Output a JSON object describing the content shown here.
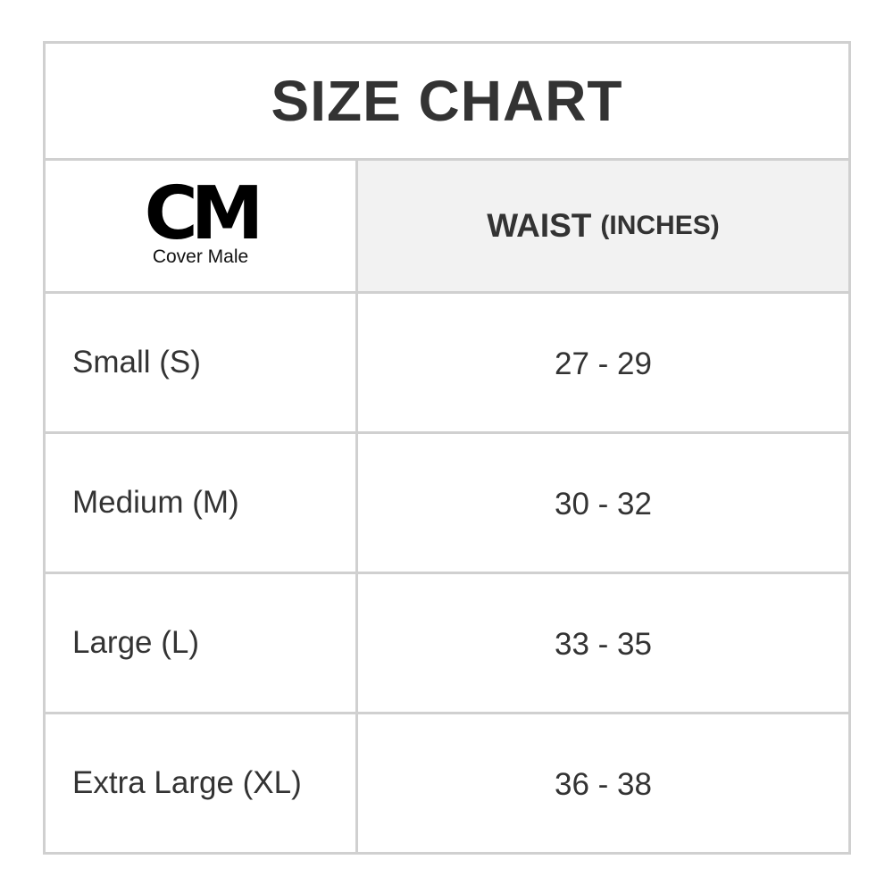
{
  "title": "SIZE CHART",
  "logo": {
    "mark": "CM",
    "name": "Cover Male"
  },
  "header": {
    "label": "WAIST",
    "unit": "(INCHES)"
  },
  "rows": [
    {
      "size": "Small (S)",
      "waist": "27 - 29"
    },
    {
      "size": "Medium (M)",
      "waist": "30 - 32"
    },
    {
      "size": "Large (L)",
      "waist": "33 - 35"
    },
    {
      "size": "Extra Large (XL)",
      "waist": "36 - 38"
    }
  ]
}
